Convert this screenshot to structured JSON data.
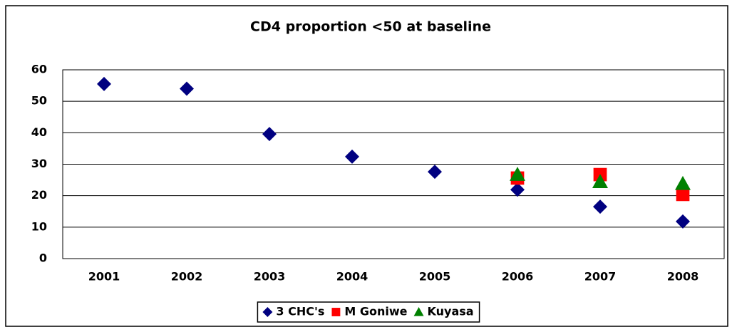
{
  "chart_data": {
    "type": "scatter",
    "title": "CD4 proportion <50 at baseline",
    "categories": [
      "2001",
      "2002",
      "2003",
      "2004",
      "2005",
      "2006",
      "2007",
      "2008"
    ],
    "series": [
      {
        "name": "3 CHC's",
        "color": "#000080",
        "marker": "diamond",
        "values": [
          55.5,
          54,
          39.6,
          32.4,
          27.6,
          21.9,
          16.5,
          11.8
        ]
      },
      {
        "name": "M Goniwe",
        "color": "#ff0000",
        "marker": "square",
        "values": [
          null,
          null,
          null,
          null,
          null,
          25.6,
          26.7,
          20.4
        ]
      },
      {
        "name": "Kuyasa",
        "color": "#008000",
        "marker": "triangle",
        "values": [
          null,
          null,
          null,
          null,
          null,
          26.7,
          24.4,
          23.8
        ]
      }
    ],
    "ylim": [
      0,
      60
    ],
    "yticks": [
      0,
      10,
      20,
      30,
      40,
      50,
      60
    ],
    "grid": true,
    "legend": "bottom"
  }
}
